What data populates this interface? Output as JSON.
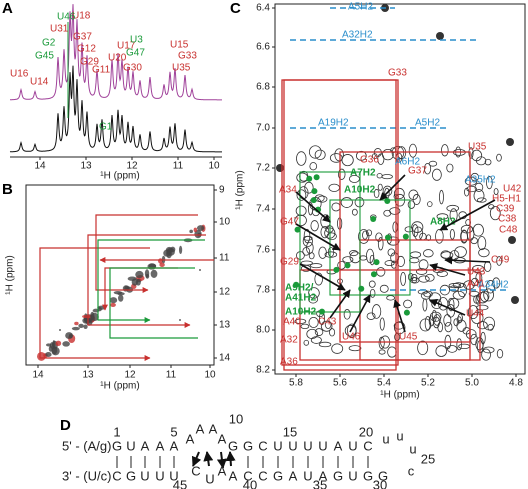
{
  "panel_a": {
    "letter": "A",
    "peaks_red": [
      "U18",
      "U31",
      "G37",
      "G12",
      "G29",
      "U17",
      "U20",
      "U15",
      "G33",
      "G11",
      "G30",
      "U35",
      "U16",
      "U14"
    ],
    "peaks_green": [
      "U46",
      "G2",
      "G45",
      "U3",
      "G47",
      "G1"
    ],
    "xticks": [
      "14",
      "13",
      "12",
      "11",
      "10"
    ],
    "xlabel": "¹H (ppm)"
  },
  "panel_b": {
    "letter": "B",
    "xticks": [
      "14",
      "13",
      "12",
      "11",
      "10"
    ],
    "yticks": [
      "9",
      "10",
      "11",
      "12",
      "13",
      "14"
    ],
    "xlabel": "¹H (ppm)",
    "ylabel": "¹H (ppm)"
  },
  "panel_c": {
    "letter": "C",
    "xticks": [
      "5.8",
      "5.6",
      "5.4",
      "5.2",
      "5.0",
      "4.8"
    ],
    "yticks": [
      "6.4",
      "6.6",
      "6.8",
      "7.0",
      "7.2",
      "7.4",
      "7.6",
      "7.8",
      "8.0",
      "8.2"
    ],
    "xlabel": "¹H (ppm)",
    "ylabel": "¹H (ppm)",
    "labels_blue": [
      "A5H2",
      "A32H2",
      "A19H2",
      "A5H2",
      "A6H2",
      "A35H2",
      "A34H2"
    ],
    "labels_red": [
      "G33",
      "U35",
      "G36",
      "G37",
      "A34",
      "U42",
      "H5-H1",
      "C39",
      "C38",
      "C48",
      "G47",
      "C49",
      "G29",
      "U43",
      "A41",
      "U44",
      "A40",
      "C43",
      "U46",
      "U45",
      "A32",
      "A36"
    ],
    "labels_green": [
      "A7H2",
      "A10H2",
      "A8H2",
      "A9H2/",
      "A41H2",
      "A10H2"
    ]
  },
  "panel_d": {
    "letter": "D",
    "five_prime": "5' - (A/g)",
    "three_prime": "3' - (U/c)",
    "top": [
      "G",
      "U",
      "A",
      "A",
      "A",
      "A",
      "A",
      "A",
      "A",
      "G",
      "G",
      "C",
      "U",
      "U",
      "U",
      "U",
      "A",
      "U",
      "C"
    ],
    "loop": [
      "u",
      "u",
      "u",
      "c"
    ],
    "bottom": [
      "C",
      "G",
      "U",
      "U",
      "U",
      "C",
      "U",
      "A",
      "A",
      "C",
      "C",
      "G",
      "A",
      "U",
      "A",
      "G",
      "U",
      "G",
      "G"
    ],
    "numbers": [
      "1",
      "5",
      "10",
      "15",
      "20",
      "25",
      "30",
      "35",
      "40",
      "45"
    ]
  }
}
